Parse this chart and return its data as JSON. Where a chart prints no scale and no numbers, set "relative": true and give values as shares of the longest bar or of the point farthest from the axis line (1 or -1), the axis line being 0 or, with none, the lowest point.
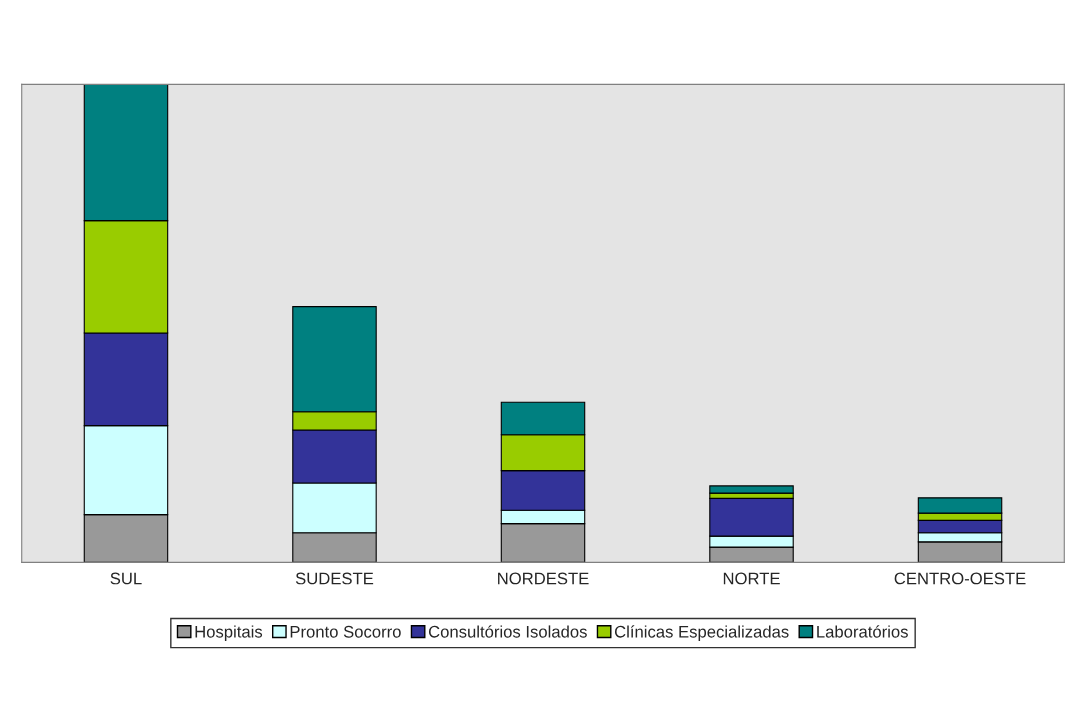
{
  "chart_data": {
    "type": "bar",
    "stacked": true,
    "relative": true,
    "legend": "bottom",
    "categories": [
      "SUL",
      "SUDESTE",
      "NORDESTE",
      "NORTE",
      "CENTRO-OESTE"
    ],
    "series": [
      {
        "name": "Hospitais",
        "color": "#999999",
        "values": [
          0.1,
          0.062,
          0.081,
          0.032,
          0.043
        ]
      },
      {
        "name": "Pronto Socorro",
        "color": "#ccffff",
        "values": [
          0.186,
          0.104,
          0.028,
          0.023,
          0.019
        ]
      },
      {
        "name": "Consultórios Isolados",
        "color": "#333399",
        "values": [
          0.194,
          0.111,
          0.083,
          0.079,
          0.026
        ]
      },
      {
        "name": "Clínicas Especializadas",
        "color": "#99cc00",
        "values": [
          0.235,
          0.038,
          0.075,
          0.011,
          0.015
        ]
      },
      {
        "name": "Laboratórios",
        "color": "#008080",
        "values": [
          0.285,
          0.22,
          0.068,
          0.015,
          0.032
        ]
      }
    ]
  }
}
